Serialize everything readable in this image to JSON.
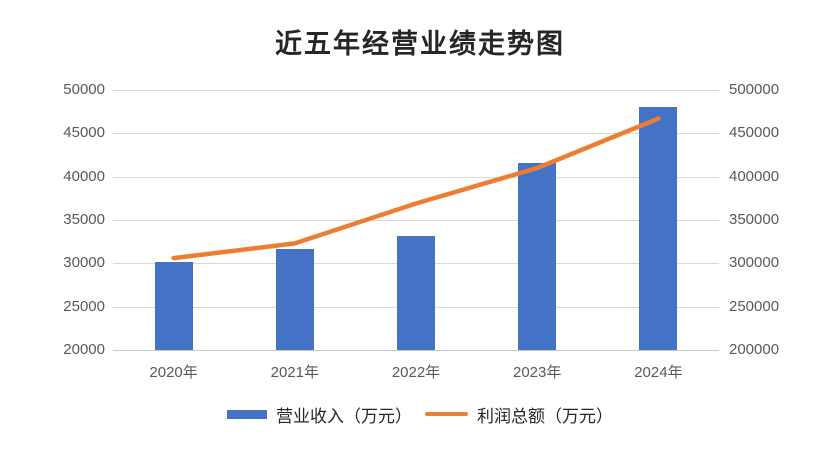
{
  "chart_data": {
    "type": "combo-bar-line",
    "title": "近五年经营业绩走势图",
    "categories": [
      "2020年",
      "2021年",
      "2022年",
      "2023年",
      "2024年"
    ],
    "series": [
      {
        "name": "营业收入（万元）",
        "type": "bar",
        "axis": "left",
        "color": "#4472C4",
        "values": [
          30200,
          31600,
          33100,
          41600,
          48000
        ]
      },
      {
        "name": "利润总额（万元）",
        "type": "line",
        "axis": "right",
        "color": "#ED7D31",
        "values": [
          306000,
          323000,
          369000,
          410000,
          467000
        ]
      }
    ],
    "left_axis": {
      "min": 20000,
      "max": 50000,
      "step": 5000,
      "tick_labels": [
        "50000",
        "45000",
        "40000",
        "35000",
        "30000",
        "25000",
        "20000"
      ]
    },
    "right_axis": {
      "min": 200000,
      "max": 500000,
      "step": 50000,
      "tick_labels": [
        "500000",
        "450000",
        "400000",
        "350000",
        "300000",
        "250000",
        "200000"
      ]
    },
    "grid": true,
    "legend_position": "bottom",
    "background_color": "#FFFFFF",
    "gridline_color": "#D9D9D9",
    "axis_text_color": "#595959"
  }
}
